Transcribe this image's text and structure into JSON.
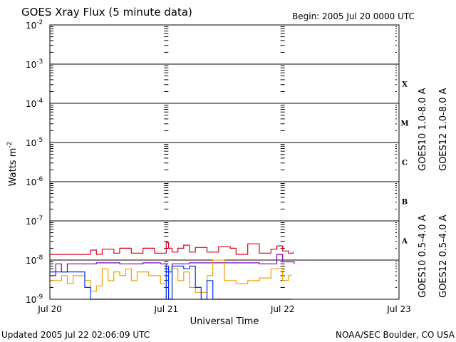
{
  "header": {
    "title": "GOES Xray Flux (5 minute data)",
    "begin": "Begin:  2005 Jul 20 0000 UTC"
  },
  "footer": {
    "updated": "Updated 2005 Jul 22 02:06:09 UTC",
    "credit": "NOAA/SEC Boulder, CO USA"
  },
  "chart_data": {
    "type": "line",
    "title": "GOES Xray Flux (5 minute data)",
    "xlabel": "Universal Time",
    "ylabel_main": "Watts m",
    "ylabel_sup": "-2",
    "y_scale": "log",
    "ylim": [
      1e-09,
      0.01
    ],
    "x_range_days": [
      0,
      3
    ],
    "x_ticks": [
      {
        "day": 0,
        "label": "Jul 20"
      },
      {
        "day": 1,
        "label": "Jul 21"
      },
      {
        "day": 2,
        "label": "Jul 22"
      },
      {
        "day": 3,
        "label": "Jul 23"
      }
    ],
    "y_ticks": [
      {
        "base": "10",
        "exp": "-2"
      },
      {
        "base": "10",
        "exp": "-3"
      },
      {
        "base": "10",
        "exp": "-4"
      },
      {
        "base": "10",
        "exp": "-5"
      },
      {
        "base": "10",
        "exp": "-6"
      },
      {
        "base": "10",
        "exp": "-7"
      },
      {
        "base": "10",
        "exp": "-8"
      },
      {
        "base": "10",
        "exp": "-9"
      }
    ],
    "flare_classes": [
      "X",
      "M",
      "C",
      "B",
      "A"
    ],
    "grid": "horizontal lines at each decade",
    "colors": {
      "goes10_long": "#7f00b0",
      "goes12_long": "#e0001e",
      "goes10_short": "#f0a000",
      "goes12_short": "#0030ff"
    },
    "legend": {
      "goes10_long": "GOES10 1.0-8.0 A",
      "goes12_long": "GOES12 1.0-8.0 A",
      "goes10_short": "GOES10 0.5-4.0 A",
      "goes12_short": "GOES12 0.5-4.0 A"
    },
    "series": [
      {
        "key": "goes12_long",
        "name": "GOES12 1.0-8.0 A",
        "x_days": [
          0.0,
          0.3,
          0.35,
          0.4,
          0.45,
          0.55,
          0.6,
          0.7,
          0.8,
          0.9,
          0.98,
          1.0,
          1.02,
          1.05,
          1.1,
          1.15,
          1.2,
          1.25,
          1.35,
          1.45,
          1.55,
          1.6,
          1.7,
          1.8,
          1.9,
          1.95,
          2.0,
          2.05,
          2.09
        ],
        "values": [
          1.4e-08,
          1.4e-08,
          1.8e-08,
          1.4e-08,
          1.9e-08,
          1.5e-08,
          2e-08,
          1.5e-08,
          2e-08,
          1.5e-08,
          1.5e-08,
          2.8e-08,
          2e-08,
          1.6e-08,
          2e-08,
          2.4e-08,
          1.6e-08,
          2.1e-08,
          1.6e-08,
          2.2e-08,
          2e-08,
          1.4e-08,
          2.6e-08,
          1.5e-08,
          1.9e-08,
          2.3e-08,
          1.7e-08,
          1.5e-08,
          1.6e-08
        ]
      },
      {
        "key": "goes10_long",
        "name": "GOES10 1.0-8.0 A",
        "x_days": [
          0.0,
          0.05,
          0.1,
          0.15,
          0.25,
          0.4,
          0.6,
          0.8,
          0.95,
          1.0,
          1.05,
          1.2,
          1.4,
          1.6,
          1.8,
          1.95,
          2.0,
          2.1
        ],
        "values": [
          4e-09,
          8e-09,
          5e-09,
          8e-09,
          8e-09,
          8.5e-09,
          8e-09,
          8.5e-09,
          8e-09,
          5e-09,
          8e-09,
          8.5e-09,
          8.5e-09,
          8.5e-09,
          8e-09,
          1.4e-08,
          9e-09,
          8e-09
        ]
      },
      {
        "key": "goes10_short",
        "name": "GOES10 0.5-4.0 A",
        "x_days": [
          0.0,
          0.05,
          0.1,
          0.15,
          0.2,
          0.3,
          0.35,
          0.4,
          0.45,
          0.5,
          0.55,
          0.6,
          0.65,
          0.7,
          0.75,
          0.85,
          0.95,
          1.0,
          1.05,
          1.1,
          1.15,
          1.2,
          1.25,
          1.35,
          1.4,
          1.5,
          1.6,
          1.7,
          1.8,
          1.9,
          2.0,
          2.05,
          2.08
        ],
        "values": [
          3e-09,
          3e-09,
          4e-09,
          2.5e-09,
          4e-09,
          3e-09,
          1.6e-09,
          2.2e-09,
          6e-09,
          3e-09,
          5e-09,
          4e-09,
          6e-09,
          3e-09,
          5e-09,
          4e-09,
          2.5e-09,
          1e-09,
          6e-09,
          3e-09,
          5e-09,
          2e-09,
          1.5e-09,
          4e-09,
          1e-08,
          3e-09,
          2.5e-09,
          3e-09,
          3.5e-09,
          6e-09,
          3e-09,
          4e-09,
          4e-09
        ]
      },
      {
        "key": "goes12_short",
        "name": "GOES12 0.5-4.0 A",
        "x_days": [
          0.0,
          0.2,
          0.3,
          0.35,
          0.4,
          0.45,
          0.5,
          0.55,
          0.6,
          0.7,
          0.8,
          0.9,
          0.98,
          1.0,
          1.02,
          1.05,
          1.1,
          1.15,
          1.2,
          1.25,
          1.3,
          1.35,
          1.4,
          1.6,
          1.75,
          1.85,
          2.05,
          2.08
        ],
        "values": [
          5e-09,
          5e-09,
          2e-09,
          1e-09,
          1e-09,
          1e-09,
          1e-09,
          1e-09,
          1e-09,
          1e-09,
          1e-09,
          1e-09,
          1e-09,
          7e-09,
          1e-09,
          7e-09,
          7e-09,
          6e-09,
          7e-09,
          2e-09,
          1e-09,
          3e-09,
          1e-09,
          1e-09,
          1e-09,
          1e-09,
          1e-09,
          1e-09
        ]
      }
    ]
  }
}
